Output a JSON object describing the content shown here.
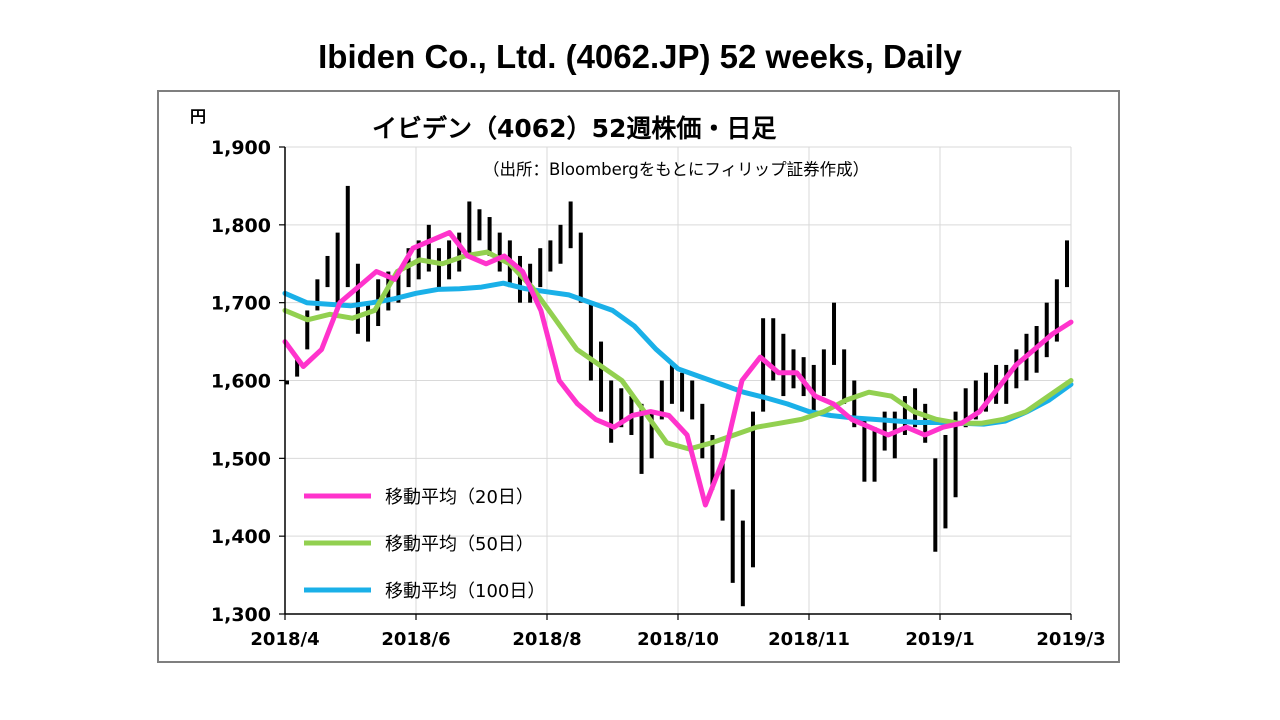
{
  "page_title": "Ibiden Co., Ltd. (4062.JP) 52 weeks, Daily",
  "chart_data": {
    "type": "line",
    "title": "イビデン（4062）52週株価・日足",
    "subtitle": "（出所：Bloombergをもとにフィリップ証券作成）",
    "y_unit": "円",
    "ylim": [
      1300,
      1900
    ],
    "y_ticks": [
      "1,300",
      "1,400",
      "1,500",
      "1,600",
      "1,700",
      "1,800",
      "1,900"
    ],
    "x_ticks": [
      "2018/4",
      "2018/6",
      "2018/8",
      "2018/10",
      "2018/11",
      "2019/1",
      "2019/3"
    ],
    "grid": true,
    "legend_position": "lower-left",
    "price_color": "#000000",
    "price_series": [
      [
        1595,
        1600
      ],
      [
        1605,
        1630
      ],
      [
        1640,
        1690
      ],
      [
        1690,
        1730
      ],
      [
        1720,
        1760
      ],
      [
        1700,
        1790
      ],
      [
        1720,
        1850
      ],
      [
        1660,
        1750
      ],
      [
        1650,
        1700
      ],
      [
        1670,
        1730
      ],
      [
        1690,
        1740
      ],
      [
        1700,
        1740
      ],
      [
        1720,
        1770
      ],
      [
        1730,
        1780
      ],
      [
        1740,
        1800
      ],
      [
        1720,
        1770
      ],
      [
        1730,
        1780
      ],
      [
        1740,
        1790
      ],
      [
        1760,
        1830
      ],
      [
        1780,
        1820
      ],
      [
        1760,
        1810
      ],
      [
        1740,
        1790
      ],
      [
        1720,
        1780
      ],
      [
        1700,
        1760
      ],
      [
        1700,
        1750
      ],
      [
        1720,
        1770
      ],
      [
        1740,
        1780
      ],
      [
        1750,
        1800
      ],
      [
        1770,
        1830
      ],
      [
        1700,
        1790
      ],
      [
        1600,
        1700
      ],
      [
        1560,
        1650
      ],
      [
        1520,
        1600
      ],
      [
        1540,
        1590
      ],
      [
        1530,
        1580
      ],
      [
        1480,
        1570
      ],
      [
        1500,
        1560
      ],
      [
        1550,
        1600
      ],
      [
        1570,
        1620
      ],
      [
        1560,
        1610
      ],
      [
        1550,
        1600
      ],
      [
        1500,
        1570
      ],
      [
        1460,
        1530
      ],
      [
        1420,
        1500
      ],
      [
        1340,
        1460
      ],
      [
        1310,
        1420
      ],
      [
        1360,
        1560
      ],
      [
        1560,
        1680
      ],
      [
        1600,
        1680
      ],
      [
        1580,
        1660
      ],
      [
        1590,
        1640
      ],
      [
        1580,
        1630
      ],
      [
        1560,
        1620
      ],
      [
        1580,
        1640
      ],
      [
        1620,
        1700
      ],
      [
        1570,
        1640
      ],
      [
        1540,
        1600
      ],
      [
        1470,
        1550
      ],
      [
        1470,
        1540
      ],
      [
        1510,
        1560
      ],
      [
        1500,
        1560
      ],
      [
        1530,
        1580
      ],
      [
        1540,
        1590
      ],
      [
        1520,
        1570
      ],
      [
        1380,
        1500
      ],
      [
        1410,
        1530
      ],
      [
        1450,
        1560
      ],
      [
        1540,
        1590
      ],
      [
        1550,
        1600
      ],
      [
        1560,
        1610
      ],
      [
        1570,
        1620
      ],
      [
        1570,
        1620
      ],
      [
        1590,
        1640
      ],
      [
        1600,
        1660
      ],
      [
        1610,
        1670
      ],
      [
        1630,
        1700
      ],
      [
        1650,
        1730
      ],
      [
        1720,
        1780
      ]
    ],
    "series": [
      {
        "name": "移動平均（20日）",
        "color": "#ff33cc",
        "values": [
          1650,
          1618,
          1640,
          1700,
          1720,
          1740,
          1730,
          1770,
          1780,
          1790,
          1760,
          1750,
          1760,
          1740,
          1690,
          1600,
          1570,
          1550,
          1540,
          1555,
          1560,
          1555,
          1530,
          1440,
          1500,
          1600,
          1630,
          1610,
          1610,
          1580,
          1570,
          1550,
          1540,
          1530,
          1540,
          1530,
          1540,
          1545,
          1560,
          1590,
          1620,
          1640,
          1660,
          1675
        ]
      },
      {
        "name": "移動平均（50日）",
        "color": "#92d050",
        "values": [
          1690,
          1678,
          1685,
          1680,
          1690,
          1740,
          1755,
          1750,
          1760,
          1765,
          1750,
          1720,
          1680,
          1640,
          1620,
          1600,
          1560,
          1520,
          1512,
          1520,
          1530,
          1540,
          1545,
          1550,
          1560,
          1575,
          1585,
          1580,
          1560,
          1550,
          1545,
          1545,
          1550,
          1560,
          1580,
          1600
        ]
      },
      {
        "name": "移動平均（100日）",
        "color": "#1ab0e8",
        "values": [
          1712,
          1700,
          1698,
          1696,
          1700,
          1705,
          1712,
          1717,
          1718,
          1720,
          1725,
          1718,
          1714,
          1710,
          1700,
          1690,
          1670,
          1640,
          1615,
          1605,
          1595,
          1585,
          1578,
          1570,
          1560,
          1555,
          1552,
          1550,
          1548,
          1546,
          1546,
          1545,
          1544,
          1548,
          1560,
          1575,
          1595
        ]
      }
    ]
  }
}
